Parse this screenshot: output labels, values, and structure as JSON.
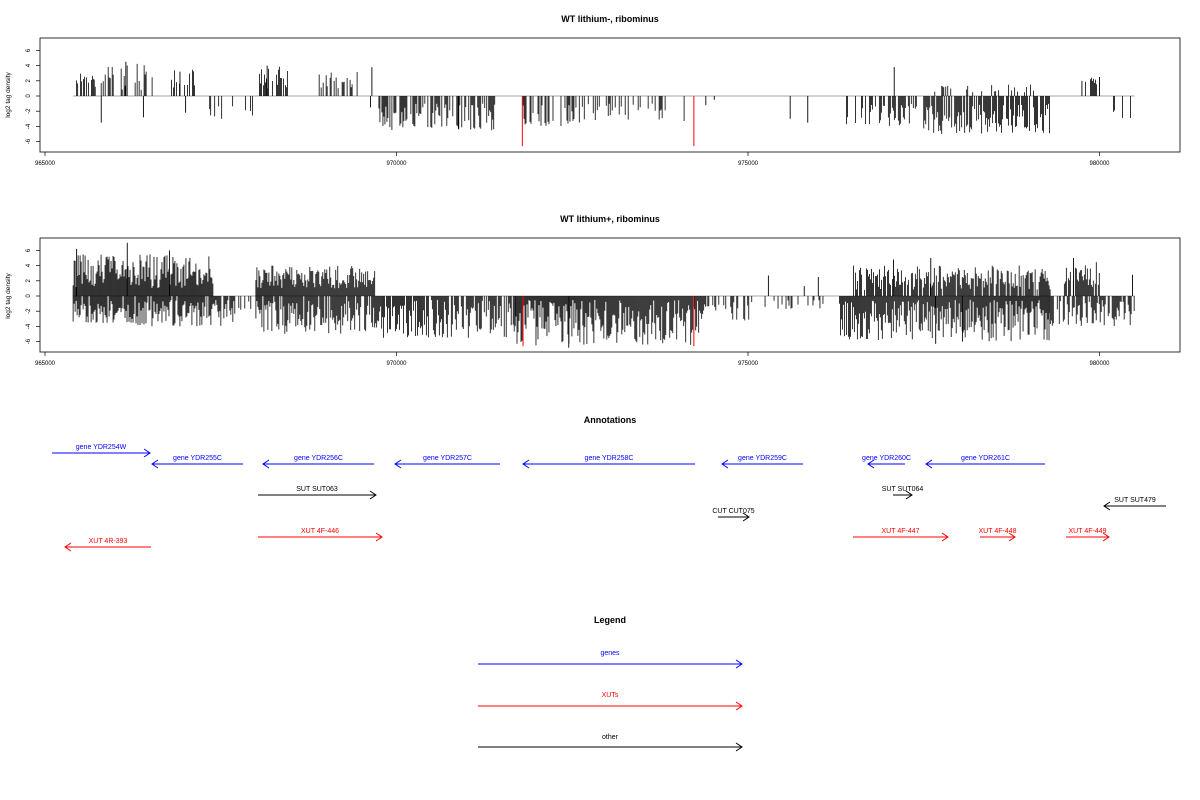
{
  "panels": [
    {
      "title": "WT lithium-, ribominus",
      "ylabel": "log2 tag density"
    },
    {
      "title": "WT lithium+, ribominus",
      "ylabel": "log2 tag density"
    }
  ],
  "annotations_title": "Annotations",
  "legend": {
    "title": "Legend",
    "items": [
      {
        "label": "genes",
        "color": "#0000ff"
      },
      {
        "label": "XUTs",
        "color": "#ff0000"
      },
      {
        "label": "other",
        "color": "#000000"
      }
    ]
  },
  "colors": {
    "axis": "#000000",
    "baseline": "#a6a6a6",
    "bar": "#000000",
    "highlight": "#ff0000"
  },
  "chart_data": [
    {
      "type": "bar",
      "title": "WT lithium-, ribominus",
      "xlabel": "",
      "ylabel": "log2 tag density",
      "xlim": [
        965000,
        981100
      ],
      "ylim": [
        -7,
        7.5
      ],
      "xticks": [
        965000,
        970000,
        975000,
        980000
      ],
      "yticks": [
        -6,
        -4,
        -2,
        0,
        2,
        4,
        6
      ],
      "highlight_positions": [
        971790,
        974230
      ],
      "highlight_value": -6.6,
      "regions": [
        {
          "from": 965450,
          "to": 965700,
          "density": 0.5,
          "min": 1.5,
          "max": 3.5,
          "seed": 11
        },
        {
          "from": 965700,
          "to": 966550,
          "density": 0.35,
          "min": 0.8,
          "max": 4.5,
          "seed": 12
        },
        {
          "from": 966800,
          "to": 967200,
          "density": 0.35,
          "min": 1.0,
          "max": 3.5,
          "seed": 13
        },
        {
          "from": 967300,
          "to": 968050,
          "density": 0.2,
          "min": -3.5,
          "max": -1.0,
          "seed": 14
        },
        {
          "from": 968050,
          "to": 968450,
          "density": 0.6,
          "min": 1.0,
          "max": 4.0,
          "seed": 15
        },
        {
          "from": 968900,
          "to": 969500,
          "density": 0.45,
          "min": 1.0,
          "max": 3.5,
          "seed": 16
        },
        {
          "from": 969750,
          "to": 971400,
          "density": 0.6,
          "min": -4.5,
          "max": -1.0,
          "seed": 17
        },
        {
          "from": 971800,
          "to": 972600,
          "density": 0.5,
          "min": -4.0,
          "max": -1.0,
          "seed": 18
        },
        {
          "from": 972600,
          "to": 974100,
          "density": 0.3,
          "min": -3.5,
          "max": -1.0,
          "seed": 19
        },
        {
          "from": 976400,
          "to": 977400,
          "density": 0.55,
          "min": -4.0,
          "max": -1.0,
          "seed": 20
        },
        {
          "from": 977500,
          "to": 979300,
          "density": 0.75,
          "min": -5.0,
          "max": -1.0,
          "seed": 21
        },
        {
          "from": 977600,
          "to": 979100,
          "density": 0.2,
          "min": 0.5,
          "max": 1.5,
          "seed": 22
        },
        {
          "from": 979800,
          "to": 980000,
          "density": 0.4,
          "min": 1.5,
          "max": 2.5,
          "seed": 23
        },
        {
          "from": 980200,
          "to": 980500,
          "density": 0.3,
          "min": -3.0,
          "max": -1.0,
          "seed": 24
        }
      ],
      "spikes": [
        {
          "x": 966150,
          "y": 4.5
        },
        {
          "x": 966920,
          "y": 3.2
        },
        {
          "x": 965800,
          "y": -3.5
        },
        {
          "x": 966400,
          "y": -2.8
        },
        {
          "x": 967000,
          "y": -2.2
        },
        {
          "x": 968160,
          "y": 4.0
        },
        {
          "x": 969650,
          "y": 3.8
        },
        {
          "x": 969630,
          "y": -1.5
        },
        {
          "x": 970880,
          "y": -4.3
        },
        {
          "x": 977080,
          "y": 3.8
        },
        {
          "x": 975600,
          "y": -3.0
        },
        {
          "x": 975850,
          "y": -3.5
        },
        {
          "x": 980000,
          "y": 2.5
        },
        {
          "x": 979750,
          "y": 2.0
        },
        {
          "x": 974400,
          "y": -1.2
        },
        {
          "x": 974520,
          "y": -0.5
        }
      ]
    },
    {
      "type": "bar",
      "title": "WT lithium+, ribominus",
      "xlabel": "",
      "ylabel": "log2 tag density",
      "xlim": [
        965000,
        981100
      ],
      "ylim": [
        -7,
        7.5
      ],
      "xticks": [
        965000,
        970000,
        975000,
        980000
      ],
      "yticks": [
        -6,
        -4,
        -2,
        0,
        2,
        4,
        6
      ],
      "highlight_positions": [
        971800,
        974230
      ],
      "highlight_value": -6.6,
      "regions": [
        {
          "from": 965400,
          "to": 967400,
          "density": 1.0,
          "min": 1.0,
          "max": 5.5,
          "seed": 31
        },
        {
          "from": 965400,
          "to": 967700,
          "density": 0.9,
          "min": -4.0,
          "max": -0.5,
          "seed": 32
        },
        {
          "from": 967700,
          "to": 968000,
          "density": 0.3,
          "min": -3.0,
          "max": -0.5,
          "seed": 33
        },
        {
          "from": 968000,
          "to": 969700,
          "density": 1.0,
          "min": 1.0,
          "max": 4.0,
          "seed": 34
        },
        {
          "from": 968000,
          "to": 969800,
          "density": 0.9,
          "min": -5.0,
          "max": -0.5,
          "seed": 35
        },
        {
          "from": 969800,
          "to": 971700,
          "density": 0.8,
          "min": -5.5,
          "max": -0.5,
          "seed": 36
        },
        {
          "from": 971700,
          "to": 974400,
          "density": 1.0,
          "min": -6.5,
          "max": -0.5,
          "seed": 37
        },
        {
          "from": 974400,
          "to": 975200,
          "density": 0.35,
          "min": -3.5,
          "max": -0.5,
          "seed": 38
        },
        {
          "from": 975200,
          "to": 976300,
          "density": 0.15,
          "min": -2.0,
          "max": -0.5,
          "seed": 39
        },
        {
          "from": 976300,
          "to": 979300,
          "density": 1.0,
          "min": -6.0,
          "max": -0.5,
          "seed": 40
        },
        {
          "from": 976500,
          "to": 979300,
          "density": 0.85,
          "min": 0.8,
          "max": 4.0,
          "seed": 41
        },
        {
          "from": 979300,
          "to": 980500,
          "density": 0.75,
          "min": -4.0,
          "max": -0.5,
          "seed": 42
        },
        {
          "from": 979500,
          "to": 980000,
          "density": 0.8,
          "min": 1.0,
          "max": 4.5,
          "seed": 43
        }
      ],
      "spikes": [
        {
          "x": 966170,
          "y": 7.0
        },
        {
          "x": 965450,
          "y": 6.2
        },
        {
          "x": 966770,
          "y": 6.0
        },
        {
          "x": 977070,
          "y": 4.8
        },
        {
          "x": 977600,
          "y": 5.0
        },
        {
          "x": 979630,
          "y": 5.0
        },
        {
          "x": 975290,
          "y": 2.7
        },
        {
          "x": 976000,
          "y": 2.5
        },
        {
          "x": 980470,
          "y": 2.8
        },
        {
          "x": 972450,
          "y": -6.8
        },
        {
          "x": 977670,
          "y": -6.3
        },
        {
          "x": 978050,
          "y": -6.0
        },
        {
          "x": 975800,
          "y": 1.3
        }
      ]
    }
  ],
  "annotation_tracks": [
    {
      "label": "gene YDR254W",
      "from": 965000,
      "to": 966400,
      "strand": "+",
      "kind": "genes",
      "row": 0
    },
    {
      "label": "gene YDR255C",
      "from": 965500,
      "to": 966800,
      "strand": "-",
      "kind": "genes",
      "row": 1
    },
    {
      "label": "gene YDR256C",
      "from": 968100,
      "to": 969800,
      "strand": "-",
      "kind": "genes",
      "row": 1
    },
    {
      "label": "gene YDR257C",
      "from": 970000,
      "to": 971600,
      "strand": "-",
      "kind": "genes",
      "row": 1
    },
    {
      "label": "gene YDR258C",
      "from": 971900,
      "to": 974700,
      "strand": "-",
      "kind": "genes",
      "row": 1
    },
    {
      "label": "gene YDR259C",
      "from": 975400,
      "to": 976500,
      "strand": "-",
      "kind": "genes",
      "row": 1
    },
    {
      "label": "gene YDR260C",
      "from": 977000,
      "to": 977550,
      "strand": "-",
      "kind": "genes",
      "row": 1
    },
    {
      "label": "gene YDR261C",
      "from": 977800,
      "to": 979500,
      "strand": "-",
      "kind": "genes",
      "row": 1
    },
    {
      "label": "SUT SUT063",
      "from": 968000,
      "to": 969700,
      "strand": "+",
      "kind": "other",
      "row": 2
    },
    {
      "label": "SUT SUT064",
      "from": 977500,
      "to": 977650,
      "strand": "+",
      "kind": "other",
      "row": 2
    },
    {
      "label": "SUT SUT479",
      "from": 980700,
      "to": 981200,
      "strand": "-",
      "kind": "other",
      "row": 2
    },
    {
      "label": "CUT CUT075",
      "from": 974800,
      "to": 975300,
      "strand": "+",
      "kind": "other",
      "row": 3
    },
    {
      "label": "XUT 4R-393",
      "from": 965300,
      "to": 966500,
      "strand": "-",
      "kind": "XUTs",
      "row": 4
    },
    {
      "label": "XUT 4F-446",
      "from": 968000,
      "to": 969800,
      "strand": "+",
      "kind": "XUTs",
      "row": 4
    },
    {
      "label": "XUT 4F-447",
      "from": 976600,
      "to": 978000,
      "strand": "+",
      "kind": "XUTs",
      "row": 4
    },
    {
      "label": "XUT 4F-448",
      "from": 978800,
      "to": 979300,
      "strand": "+",
      "kind": "XUTs",
      "row": 4
    },
    {
      "label": "XUT 4F-449",
      "from": 979800,
      "to": 980400,
      "strand": "+",
      "kind": "XUTs",
      "row": 4
    }
  ]
}
